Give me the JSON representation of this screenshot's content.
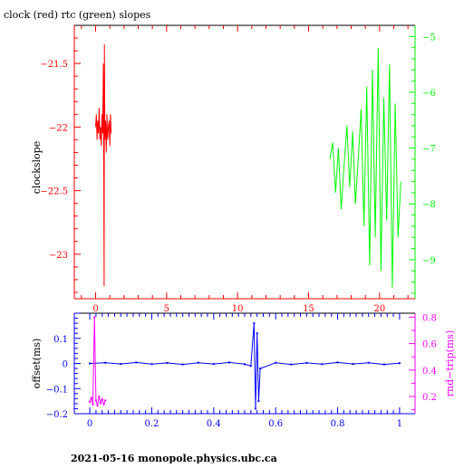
{
  "title": "clock (red) rtc (green) slopes",
  "footer": "2021-05-16  monopole.physics.ubc.ca",
  "colors": {
    "red": "#ff0000",
    "green": "#00ff00",
    "blue": "#0000ff",
    "magenta": "#ff00ff",
    "black": "#000000"
  },
  "chart_data": [
    {
      "type": "line",
      "title": "clock (red) rtc (green) slopes",
      "ylabel": "clockslope",
      "xlabel": "",
      "xlim": [
        -1.5,
        22.5
      ],
      "ylim_left": [
        -23.35,
        -21.2
      ],
      "ylim_right": [
        -9.7,
        -4.8
      ],
      "x_ticks": [
        {
          "value": 0,
          "label": "0"
        },
        {
          "value": 5,
          "label": "5"
        },
        {
          "value": 10,
          "label": "10"
        },
        {
          "value": 15,
          "label": "15"
        },
        {
          "value": 20,
          "label": "20"
        }
      ],
      "y_ticks_left": [
        {
          "value": -21.5,
          "label": "−21.5"
        },
        {
          "value": -22,
          "label": "−22"
        },
        {
          "value": -22.5,
          "label": "−22.5"
        },
        {
          "value": -23,
          "label": "−23"
        }
      ],
      "y_ticks_right": [
        {
          "value": -5,
          "label": "−5"
        },
        {
          "value": -6,
          "label": "−6"
        },
        {
          "value": -7,
          "label": "−7"
        },
        {
          "value": -8,
          "label": "−8"
        },
        {
          "value": -9,
          "label": "−9"
        }
      ],
      "series": [
        {
          "axis": "left",
          "color": "#ff0000",
          "x": [
            0.0,
            0.05,
            0.1,
            0.15,
            0.2,
            0.25,
            0.3,
            0.35,
            0.4,
            0.45,
            0.5,
            0.55,
            0.58,
            0.6,
            0.62,
            0.65,
            0.7,
            0.75,
            0.8,
            0.85,
            0.9,
            0.95,
            1.0,
            1.05,
            1.1
          ],
          "y": [
            -22.0,
            -21.9,
            -22.1,
            -21.95,
            -22.05,
            -21.85,
            -22.1,
            -22.0,
            -22.15,
            -21.9,
            -22.05,
            -21.5,
            -22.5,
            -23.25,
            -21.35,
            -22.1,
            -21.95,
            -22.2,
            -21.9,
            -22.1,
            -22.0,
            -21.95,
            -22.15,
            -21.9,
            -22.05
          ]
        },
        {
          "axis": "right",
          "color": "#00ff00",
          "x": [
            16.5,
            16.7,
            16.9,
            17.1,
            17.3,
            17.5,
            17.7,
            17.9,
            18.1,
            18.3,
            18.5,
            18.7,
            18.9,
            19.1,
            19.3,
            19.5,
            19.7,
            19.9,
            20.1,
            20.3,
            20.5,
            20.7,
            20.9,
            21.1,
            21.3,
            21.5
          ],
          "y": [
            -7.2,
            -6.9,
            -7.8,
            -7.0,
            -8.1,
            -7.3,
            -6.6,
            -7.7,
            -6.7,
            -8.0,
            -7.2,
            -6.3,
            -8.4,
            -5.9,
            -9.1,
            -5.6,
            -8.6,
            -5.2,
            -9.2,
            -6.1,
            -8.3,
            -5.5,
            -9.5,
            -6.2,
            -8.6,
            -7.6
          ]
        }
      ]
    },
    {
      "type": "scatter",
      "ylabel_left": "offset(ms)",
      "ylabel_right": "rnd−trip(ms)",
      "xlim": [
        -0.05,
        1.05
      ],
      "ylim_left": [
        -0.2,
        0.2
      ],
      "ylim_right": [
        0.07,
        0.83
      ],
      "x_ticks": [
        {
          "value": 0,
          "label": "0"
        },
        {
          "value": 0.2,
          "label": "0.2"
        },
        {
          "value": 0.4,
          "label": "0.4"
        },
        {
          "value": 0.6,
          "label": "0.6"
        },
        {
          "value": 0.8,
          "label": "0.8"
        },
        {
          "value": 1,
          "label": "1"
        }
      ],
      "y_ticks_left": [
        {
          "value": 0.1,
          "label": "0.1"
        },
        {
          "value": 0,
          "label": "0"
        },
        {
          "value": -0.1,
          "label": "−0.1"
        },
        {
          "value": -0.2,
          "label": "−0.2"
        }
      ],
      "y_ticks_right": [
        {
          "value": 0.8,
          "label": "0.8"
        },
        {
          "value": 0.6,
          "label": "0.6"
        },
        {
          "value": 0.4,
          "label": "0.4"
        },
        {
          "value": 0.2,
          "label": "0.2"
        }
      ],
      "series": [
        {
          "axis": "left",
          "color": "#0000ff",
          "x": [
            0.0,
            0.05,
            0.1,
            0.15,
            0.2,
            0.25,
            0.3,
            0.35,
            0.4,
            0.45,
            0.5,
            0.52,
            0.53,
            0.535,
            0.54,
            0.545,
            0.55,
            0.6,
            0.65,
            0.7,
            0.75,
            0.8,
            0.85,
            0.9,
            0.95,
            1.0
          ],
          "y": [
            0.0,
            0.003,
            -0.002,
            0.004,
            -0.003,
            0.002,
            -0.004,
            0.003,
            -0.002,
            0.004,
            -0.003,
            -0.01,
            0.16,
            -0.18,
            0.12,
            -0.15,
            -0.02,
            0.003,
            -0.004,
            0.002,
            -0.003,
            0.004,
            -0.002,
            0.003,
            -0.004,
            0.001
          ]
        },
        {
          "axis": "right",
          "color": "#ff00ff",
          "x": [
            0.0,
            0.005,
            0.01,
            0.015,
            0.02,
            0.025,
            0.03,
            0.035,
            0.04,
            0.045,
            0.05
          ],
          "y": [
            0.16,
            0.19,
            0.14,
            0.8,
            0.17,
            0.13,
            0.2,
            0.15,
            0.18,
            0.14,
            0.17
          ]
        }
      ]
    }
  ]
}
